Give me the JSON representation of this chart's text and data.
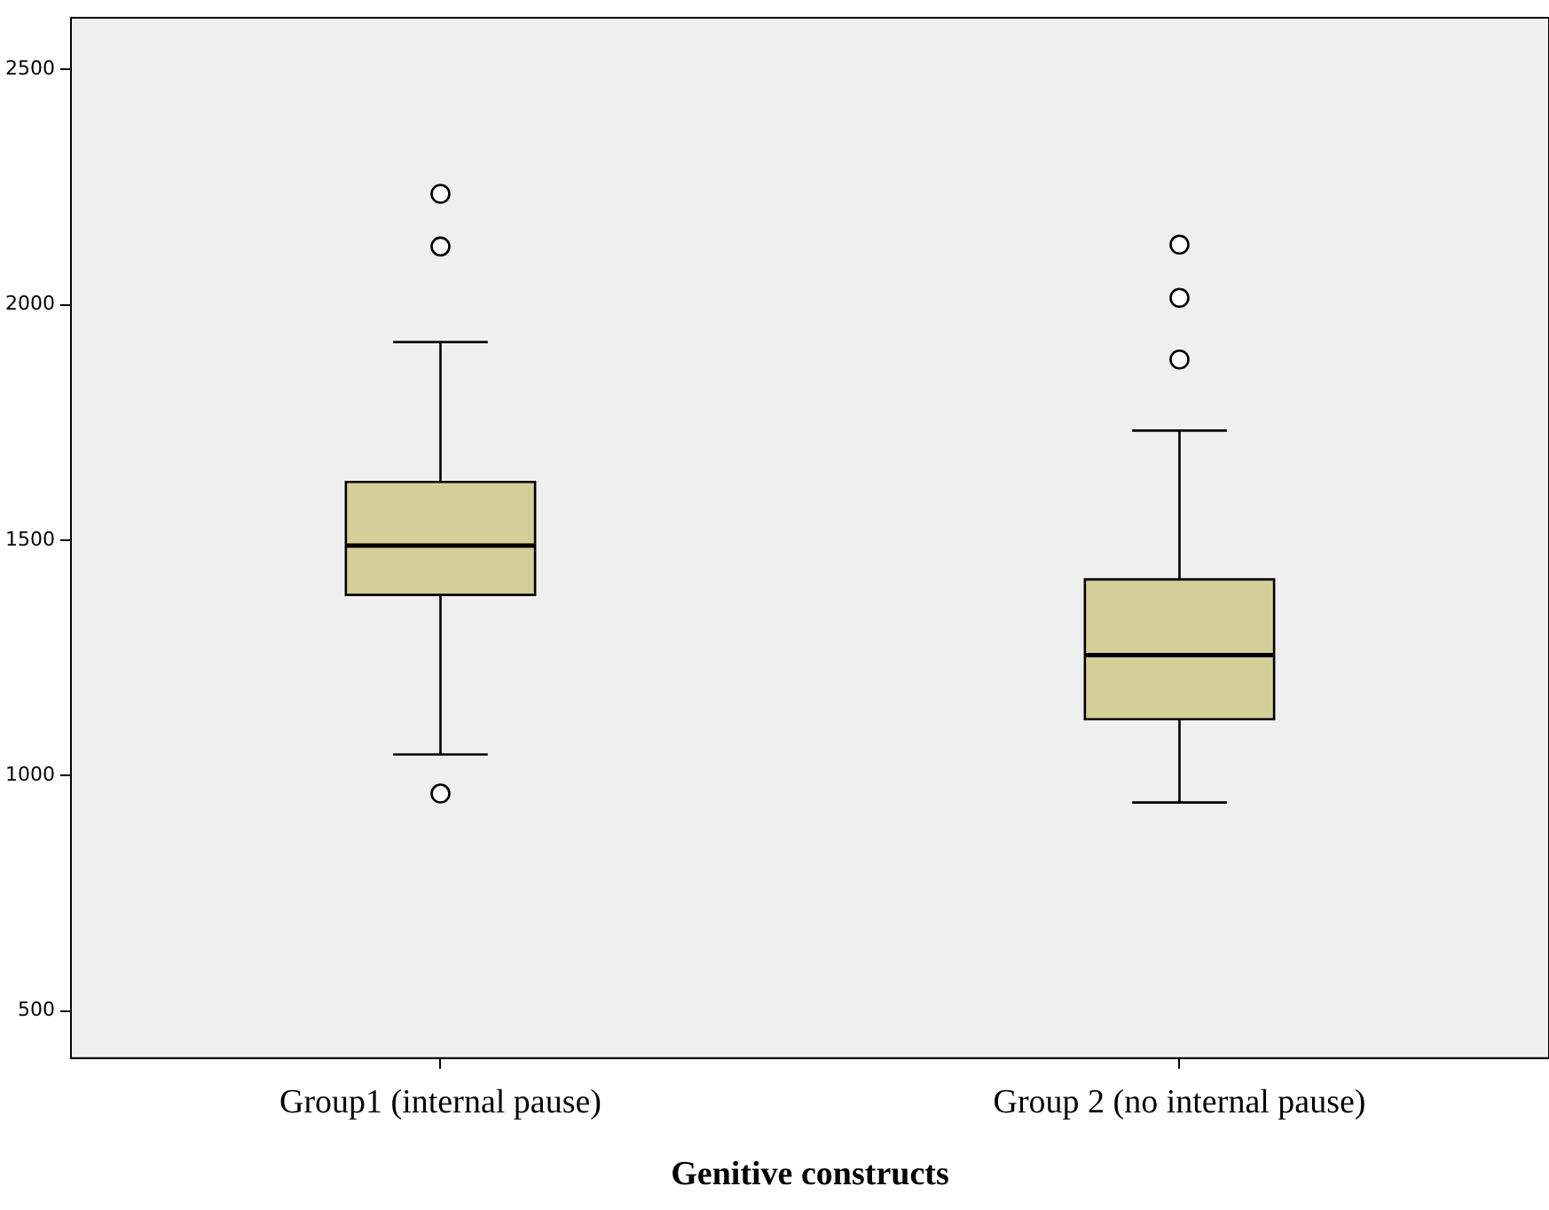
{
  "chart_data": {
    "type": "box",
    "xlabel": "Genitive constructs",
    "categories": [
      "Group1 (internal pause)",
      "Group 2 (no internal pause)"
    ],
    "boxes": [
      {
        "low": 1045,
        "q1": 1384,
        "median": 1489,
        "q3": 1624,
        "high": 1921,
        "outliers": [
          2236,
          2124,
          962
        ]
      },
      {
        "low": 943,
        "q1": 1120,
        "median": 1256,
        "q3": 1417,
        "high": 1733,
        "outliers": [
          2128,
          2015,
          1884
        ]
      }
    ],
    "color": "#d4cf98",
    "ylim": [
      400,
      2610
    ],
    "yticks": [
      500,
      1000,
      1500,
      2000,
      2500
    ]
  }
}
